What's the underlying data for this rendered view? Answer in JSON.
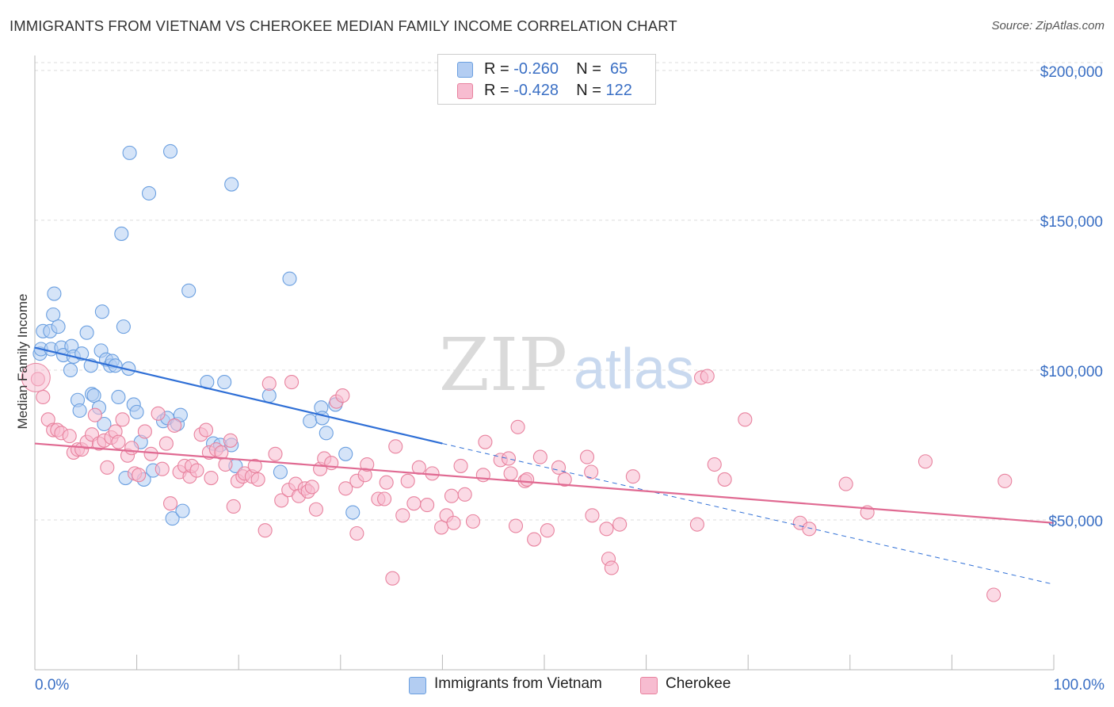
{
  "title": "IMMIGRANTS FROM VIETNAM VS CHEROKEE MEDIAN FAMILY INCOME CORRELATION CHART",
  "source": "Source: ZipAtlas.com",
  "watermark": {
    "zip": "ZIP",
    "atlas": "atlas"
  },
  "legend": [
    {
      "r_label": "R =",
      "r_value": "-0.260",
      "n_label": "N =",
      "n_value": "65"
    },
    {
      "r_label": "R =",
      "r_value": "-0.428",
      "n_label": "N =",
      "n_value": "122"
    }
  ],
  "chart_data": {
    "type": "scatter",
    "ylabel": "Median Family Income",
    "x_tick_labels": [
      "0.0%",
      "100.0%"
    ],
    "y_tick_labels": [
      "$50,000",
      "$100,000",
      "$150,000",
      "$200,000"
    ],
    "xlim": [
      0,
      100
    ],
    "ylim": [
      0,
      205000
    ],
    "y_ticks": [
      50000,
      100000,
      150000,
      200000
    ],
    "grid": true,
    "series": [
      {
        "name": "Immigrants from Vietnam",
        "color": "#6a9fe0",
        "fill": "#b3cdf2",
        "trend": {
          "x0": 0,
          "y0": 107500,
          "x1": 40,
          "y1": 75500,
          "dashed_to_x": 100,
          "dashed_to_y": 28500
        },
        "trend_color": "#2f6fd6",
        "points": [
          [
            0.5,
            105500
          ],
          [
            0.6,
            107000
          ],
          [
            0.8,
            113000
          ],
          [
            1.5,
            113000
          ],
          [
            1.6,
            107000
          ],
          [
            1.8,
            118500
          ],
          [
            1.9,
            125500
          ],
          [
            2.3,
            114500
          ],
          [
            2.6,
            107500
          ],
          [
            2.8,
            105000
          ],
          [
            3.5,
            100000
          ],
          [
            3.6,
            108000
          ],
          [
            3.8,
            104500
          ],
          [
            4.2,
            90000
          ],
          [
            4.4,
            86500
          ],
          [
            4.6,
            105500
          ],
          [
            5.1,
            112500
          ],
          [
            5.5,
            101500
          ],
          [
            5.6,
            92000
          ],
          [
            5.8,
            91500
          ],
          [
            6.3,
            87500
          ],
          [
            6.5,
            106500
          ],
          [
            6.6,
            119500
          ],
          [
            6.8,
            82000
          ],
          [
            7.0,
            103500
          ],
          [
            7.4,
            101500
          ],
          [
            7.6,
            103000
          ],
          [
            7.9,
            101500
          ],
          [
            8.2,
            91000
          ],
          [
            8.5,
            145500
          ],
          [
            8.7,
            114500
          ],
          [
            8.9,
            64000
          ],
          [
            9.2,
            100500
          ],
          [
            9.3,
            172500
          ],
          [
            9.7,
            88500
          ],
          [
            10.0,
            86000
          ],
          [
            10.4,
            76000
          ],
          [
            10.7,
            63500
          ],
          [
            11.2,
            159000
          ],
          [
            11.6,
            66500
          ],
          [
            12.6,
            83000
          ],
          [
            13.0,
            84000
          ],
          [
            13.3,
            173000
          ],
          [
            13.5,
            50500
          ],
          [
            14.0,
            82000
          ],
          [
            14.3,
            85000
          ],
          [
            14.5,
            53000
          ],
          [
            15.1,
            126500
          ],
          [
            16.9,
            96000
          ],
          [
            17.5,
            75500
          ],
          [
            18.2,
            75000
          ],
          [
            18.6,
            96000
          ],
          [
            19.3,
            75000
          ],
          [
            19.3,
            162000
          ],
          [
            19.7,
            68000
          ],
          [
            23.0,
            91500
          ],
          [
            24.1,
            66000
          ],
          [
            25.0,
            130500
          ],
          [
            27.0,
            83000
          ],
          [
            28.1,
            87500
          ],
          [
            28.2,
            84000
          ],
          [
            28.6,
            79000
          ],
          [
            29.5,
            88500
          ],
          [
            30.5,
            72000
          ],
          [
            31.2,
            52500
          ]
        ]
      },
      {
        "name": "Cherokee",
        "color": "#e8829e",
        "fill": "#f7bcd0",
        "trend": {
          "x0": 0,
          "y0": 75500,
          "x1": 100,
          "y1": 49000
        },
        "trend_color": "#e06a92",
        "points": [
          [
            0.3,
            97000
          ],
          [
            0.8,
            91000
          ],
          [
            1.3,
            83500
          ],
          [
            1.8,
            80000
          ],
          [
            2.2,
            80000
          ],
          [
            2.6,
            79000
          ],
          [
            3.4,
            78000
          ],
          [
            3.8,
            72500
          ],
          [
            4.2,
            73500
          ],
          [
            4.6,
            73500
          ],
          [
            5.1,
            76000
          ],
          [
            5.6,
            78500
          ],
          [
            5.9,
            85000
          ],
          [
            6.3,
            75500
          ],
          [
            6.8,
            76500
          ],
          [
            7.1,
            67500
          ],
          [
            7.5,
            77500
          ],
          [
            7.9,
            79500
          ],
          [
            8.2,
            76000
          ],
          [
            8.6,
            83500
          ],
          [
            9.1,
            71500
          ],
          [
            9.5,
            74000
          ],
          [
            9.8,
            65500
          ],
          [
            10.2,
            65000
          ],
          [
            10.8,
            79500
          ],
          [
            11.4,
            72000
          ],
          [
            12.1,
            85500
          ],
          [
            12.5,
            67000
          ],
          [
            12.9,
            75500
          ],
          [
            13.3,
            55500
          ],
          [
            13.7,
            81500
          ],
          [
            14.2,
            66000
          ],
          [
            14.7,
            68000
          ],
          [
            15.2,
            64500
          ],
          [
            15.4,
            68000
          ],
          [
            15.9,
            66500
          ],
          [
            16.3,
            78500
          ],
          [
            16.8,
            80000
          ],
          [
            17.1,
            72500
          ],
          [
            17.3,
            64000
          ],
          [
            17.8,
            73500
          ],
          [
            18.3,
            72500
          ],
          [
            18.7,
            68500
          ],
          [
            19.2,
            76500
          ],
          [
            19.5,
            54500
          ],
          [
            19.9,
            63000
          ],
          [
            20.4,
            64500
          ],
          [
            20.6,
            65500
          ],
          [
            21.3,
            64500
          ],
          [
            21.6,
            68000
          ],
          [
            21.9,
            63500
          ],
          [
            22.6,
            46500
          ],
          [
            23.0,
            95500
          ],
          [
            23.6,
            72000
          ],
          [
            24.2,
            56500
          ],
          [
            24.9,
            60000
          ],
          [
            25.2,
            96000
          ],
          [
            25.6,
            62000
          ],
          [
            25.9,
            58000
          ],
          [
            26.5,
            60500
          ],
          [
            26.8,
            59500
          ],
          [
            27.2,
            61000
          ],
          [
            27.6,
            53500
          ],
          [
            28.0,
            67000
          ],
          [
            28.4,
            70500
          ],
          [
            29.1,
            69000
          ],
          [
            29.6,
            89500
          ],
          [
            30.2,
            91500
          ],
          [
            30.5,
            60500
          ],
          [
            31.6,
            45500
          ],
          [
            31.6,
            63000
          ],
          [
            32.4,
            65000
          ],
          [
            32.6,
            68500
          ],
          [
            33.7,
            57000
          ],
          [
            34.3,
            57000
          ],
          [
            34.5,
            62500
          ],
          [
            35.1,
            30500
          ],
          [
            35.4,
            74500
          ],
          [
            36.1,
            51500
          ],
          [
            36.6,
            63000
          ],
          [
            37.2,
            55500
          ],
          [
            37.7,
            67500
          ],
          [
            38.5,
            55000
          ],
          [
            39.0,
            65500
          ],
          [
            39.9,
            47500
          ],
          [
            40.4,
            51500
          ],
          [
            40.9,
            58000
          ],
          [
            41.1,
            49000
          ],
          [
            41.8,
            68000
          ],
          [
            42.2,
            58500
          ],
          [
            43.0,
            49500
          ],
          [
            44.0,
            65000
          ],
          [
            44.2,
            76000
          ],
          [
            45.7,
            70000
          ],
          [
            46.5,
            70500
          ],
          [
            46.7,
            65500
          ],
          [
            47.2,
            48000
          ],
          [
            47.4,
            81000
          ],
          [
            48.1,
            63000
          ],
          [
            48.3,
            63500
          ],
          [
            49.0,
            43500
          ],
          [
            49.6,
            71000
          ],
          [
            50.3,
            46500
          ],
          [
            51.4,
            67500
          ],
          [
            52.0,
            63500
          ],
          [
            54.2,
            71000
          ],
          [
            54.6,
            66000
          ],
          [
            54.7,
            51500
          ],
          [
            56.1,
            47000
          ],
          [
            56.3,
            37000
          ],
          [
            56.6,
            34000
          ],
          [
            57.4,
            48500
          ],
          [
            58.7,
            64500
          ],
          [
            65.0,
            48500
          ],
          [
            65.4,
            97500
          ],
          [
            66.0,
            98000
          ],
          [
            66.7,
            68500
          ],
          [
            67.7,
            63500
          ],
          [
            69.7,
            83500
          ],
          [
            75.1,
            49000
          ],
          [
            76.0,
            47000
          ],
          [
            79.6,
            62000
          ],
          [
            81.7,
            52500
          ],
          [
            87.4,
            69500
          ],
          [
            94.1,
            25000
          ],
          [
            95.2,
            63000
          ]
        ]
      }
    ]
  },
  "colors": {
    "axis_blue": "#3a6fc4",
    "grid": "#dcdcdc",
    "axis": "#b8b8b8"
  }
}
